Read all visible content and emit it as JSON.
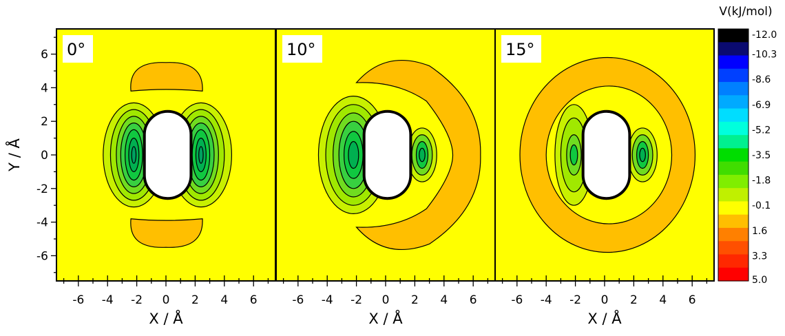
{
  "chart_data": {
    "type": "heatmap",
    "xlabel": "X / Å",
    "ylabel": "Y / Å",
    "xlim": [
      -7.5,
      7.5
    ],
    "ylim": [
      -7.5,
      7.5
    ],
    "x_ticks": [
      -6,
      -4,
      -2,
      0,
      2,
      4,
      6
    ],
    "y_ticks": [
      -6,
      -4,
      -2,
      0,
      2,
      4,
      6
    ],
    "panels": [
      {
        "label": "0°",
        "angle": 0
      },
      {
        "label": "10°",
        "angle": 10
      },
      {
        "label": "15°",
        "angle": 15
      }
    ],
    "colorbar": {
      "title": "V(kJ/mol)",
      "tick_labels": [
        "-12.0",
        "-10.3",
        "-8.6",
        "-6.9",
        "-5.2",
        "-3.5",
        "-1.8",
        "-0.1",
        "1.6",
        "3.3",
        "5.0"
      ],
      "range": [
        -12.0,
        5.0
      ],
      "colors": [
        "#000000",
        "#0a0a70",
        "#0000ff",
        "#0040ff",
        "#0080ff",
        "#00aaff",
        "#00ddff",
        "#00ffdd",
        "#00f090",
        "#00dd00",
        "#40dd00",
        "#80ee00",
        "#c0f000",
        "#ffff00",
        "#ffbf00",
        "#ff8000",
        "#ff5000",
        "#ff2800",
        "#ff0000"
      ]
    },
    "background_color": "#ffff00",
    "positive_lobe_color": "#ffbf00",
    "excluded_region_color": "#ffffff"
  }
}
